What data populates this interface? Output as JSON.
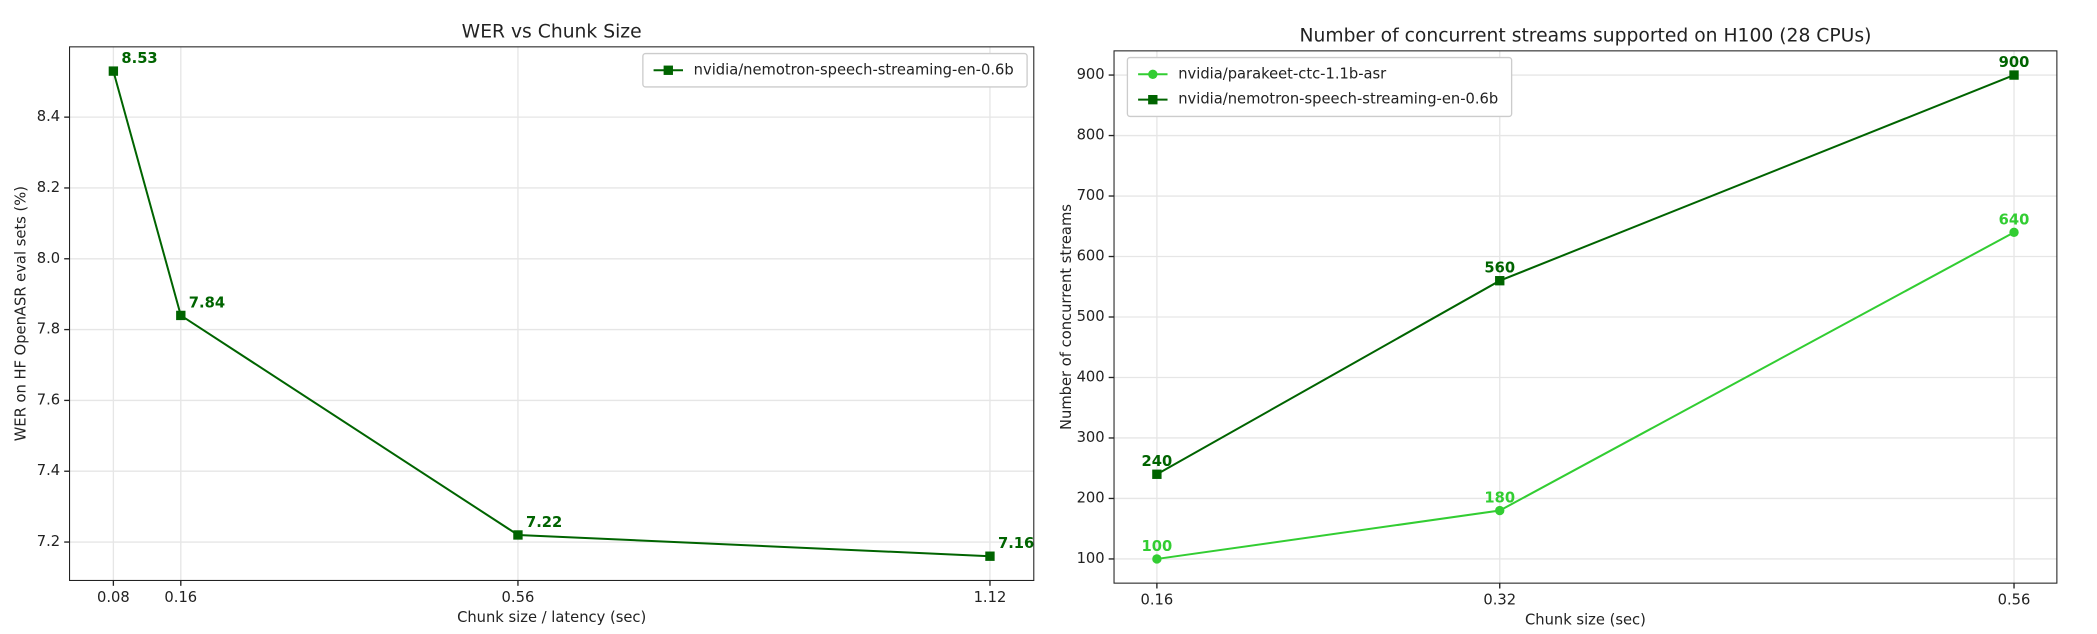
{
  "chart_data": [
    {
      "type": "line",
      "title": "WER vs Chunk Size",
      "xlabel": "Chunk size / latency (sec)",
      "ylabel": "WER on HF OpenASR eval sets (%)",
      "x": [
        0.08,
        0.16,
        0.56,
        1.12
      ],
      "series": [
        {
          "name": "nvidia/nemotron-speech-streaming-en-0.6b",
          "color": "#006400",
          "marker": "square",
          "values": [
            8.53,
            7.84,
            7.22,
            7.16
          ]
        }
      ],
      "xlim": [
        0.028,
        1.172
      ],
      "ylim": [
        7.0915,
        8.5985
      ],
      "xticks": [
        0.08,
        0.16,
        0.56,
        1.12
      ],
      "yticks": [
        7.2,
        7.4,
        7.6,
        7.8,
        {
          "value": 8,
          "label": "8.0"
        },
        8.2,
        8.4
      ],
      "grid": true,
      "legend": "upper right"
    },
    {
      "type": "line",
      "title": "Number of concurrent streams supported on H100 (28 CPUs)",
      "xlabel": "Chunk size (sec)",
      "ylabel": "Number of concurrent streams",
      "x": [
        0.16,
        0.32,
        0.56
      ],
      "series": [
        {
          "name": "nvidia/parakeet-ctc-1.1b-asr",
          "color": "#32cd32",
          "marker": "circle",
          "values": [
            100,
            180,
            640
          ]
        },
        {
          "name": "nvidia/nemotron-speech-streaming-en-0.6b",
          "color": "#006400",
          "marker": "square",
          "values": [
            240,
            560,
            900
          ]
        }
      ],
      "xlim": [
        0.14,
        0.58
      ],
      "ylim": [
        60,
        940
      ],
      "xticks": [
        0.16,
        0.32,
        0.56
      ],
      "yticks": [
        100,
        200,
        300,
        400,
        500,
        600,
        700,
        800,
        900
      ],
      "grid": true,
      "legend": "upper left"
    }
  ]
}
